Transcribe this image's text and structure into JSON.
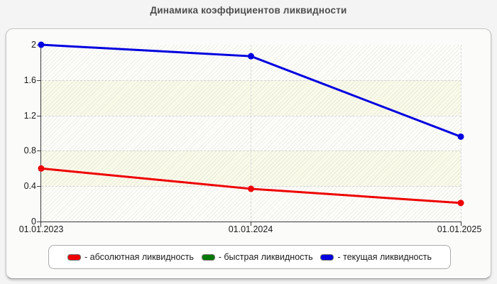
{
  "page": {
    "title": "Динамика коэффициентов ликвидности"
  },
  "chart_data": {
    "type": "line",
    "title": "Динамика коэффициентов ликвидности",
    "x_categories": [
      "01.01.2023",
      "01.01.2024",
      "01.01.2025"
    ],
    "y_ticks": [
      "2",
      "1.6",
      "1.2",
      "0.8",
      "0.4",
      "0"
    ],
    "ylim": [
      0,
      2
    ],
    "grid": {
      "horizontal": "dashed",
      "vertical": "dashed at x categories"
    },
    "legend_position": "bottom",
    "series": [
      {
        "name": "абсолютная ликвидность",
        "color": "#ee0000",
        "visible": true,
        "values": [
          0.6,
          0.37,
          0.21
        ]
      },
      {
        "name": "быстрая ликвидность",
        "color": "#067806",
        "visible": false,
        "values": []
      },
      {
        "name": "текущая ликвидность",
        "color": "#0000e0",
        "visible": true,
        "values": [
          2.0,
          1.87,
          0.96
        ]
      }
    ]
  },
  "legend": {
    "items": [
      {
        "label": "- абсолютная ликвидность",
        "color": "#ee0000"
      },
      {
        "label": "- быстрая ликвидность",
        "color": "#067806"
      },
      {
        "label": "- текущая ликвидность",
        "color": "#0000e0"
      }
    ]
  },
  "colors": {
    "axis": "#3a3a3a",
    "grid": "#d4d4d4",
    "plot_background": "#fcfcf0",
    "card_background": "#fbfbfa",
    "page_background": "#f4f4f4",
    "title_text": "#4d4d4d"
  }
}
